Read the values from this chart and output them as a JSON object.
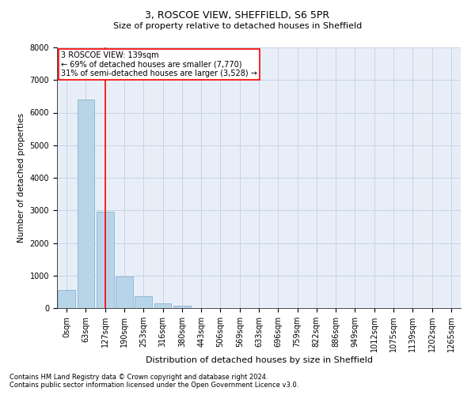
{
  "title1": "3, ROSCOE VIEW, SHEFFIELD, S6 5PR",
  "title2": "Size of property relative to detached houses in Sheffield",
  "xlabel": "Distribution of detached houses by size in Sheffield",
  "ylabel": "Number of detached properties",
  "footnote1": "Contains HM Land Registry data © Crown copyright and database right 2024.",
  "footnote2": "Contains public sector information licensed under the Open Government Licence v3.0.",
  "annotation_line1": "3 ROSCOE VIEW: 139sqm",
  "annotation_line2": "← 69% of detached houses are smaller (7,770)",
  "annotation_line3": "31% of semi-detached houses are larger (3,528) →",
  "bar_labels": [
    "0sqm",
    "63sqm",
    "127sqm",
    "190sqm",
    "253sqm",
    "316sqm",
    "380sqm",
    "443sqm",
    "506sqm",
    "569sqm",
    "633sqm",
    "696sqm",
    "759sqm",
    "822sqm",
    "886sqm",
    "949sqm",
    "1012sqm",
    "1075sqm",
    "1139sqm",
    "1202sqm",
    "1265sqm"
  ],
  "bar_values": [
    560,
    6400,
    2950,
    980,
    360,
    145,
    75,
    0,
    0,
    0,
    0,
    0,
    0,
    0,
    0,
    0,
    0,
    0,
    0,
    0,
    0
  ],
  "bar_color": "#b8d4e8",
  "bar_edge_color": "#7aaac8",
  "vline_x": 2.0,
  "vline_color": "red",
  "grid_color": "#c8d4e4",
  "bg_color": "#e8eef8",
  "ylim": [
    0,
    8000
  ],
  "yticks": [
    0,
    1000,
    2000,
    3000,
    4000,
    5000,
    6000,
    7000,
    8000
  ],
  "annotation_box_color": "white",
  "annotation_box_edge": "red",
  "title1_fontsize": 9,
  "title2_fontsize": 8,
  "xlabel_fontsize": 8,
  "ylabel_fontsize": 7.5,
  "tick_fontsize": 7,
  "ann_fontsize": 7,
  "footnote_fontsize": 6
}
